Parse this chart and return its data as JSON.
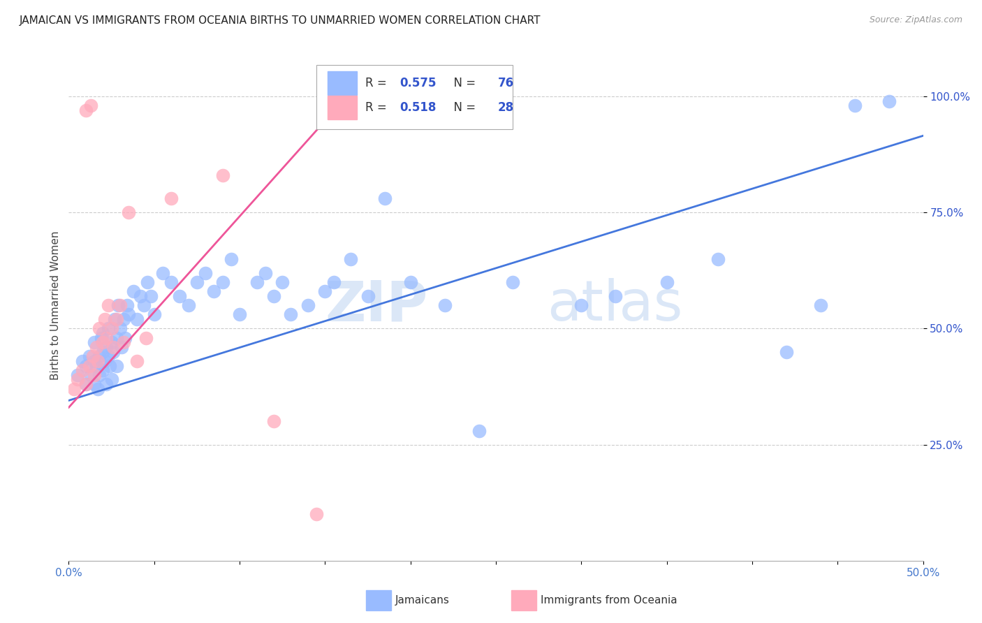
{
  "title": "JAMAICAN VS IMMIGRANTS FROM OCEANIA BIRTHS TO UNMARRIED WOMEN CORRELATION CHART",
  "source": "Source: ZipAtlas.com",
  "ylabel": "Births to Unmarried Women",
  "ytick_labels": [
    "25.0%",
    "50.0%",
    "75.0%",
    "100.0%"
  ],
  "ytick_vals": [
    0.25,
    0.5,
    0.75,
    1.0
  ],
  "xtick_labels": [
    "0.0%",
    "",
    "",
    "",
    "",
    "",
    "",
    "",
    "",
    "",
    "50.0%"
  ],
  "xlim": [
    0.0,
    0.5
  ],
  "ylim": [
    0.0,
    1.1
  ],
  "blue_scatter_color": "#99bbff",
  "pink_scatter_color": "#ffaabb",
  "blue_line_color": "#4477dd",
  "pink_line_color": "#ee5599",
  "legend_R_color": "#3355cc",
  "legend_R_blue": "0.575",
  "legend_N_blue": "76",
  "legend_R_pink": "0.518",
  "legend_N_pink": "28",
  "legend_label_blue": "Jamaicans",
  "legend_label_pink": "Immigrants from Oceania",
  "watermark_zip": "ZIP",
  "watermark_atlas": "atlas",
  "blue_scatter_x": [
    0.005,
    0.008,
    0.01,
    0.01,
    0.012,
    0.013,
    0.015,
    0.015,
    0.015,
    0.016,
    0.017,
    0.018,
    0.018,
    0.019,
    0.02,
    0.02,
    0.02,
    0.021,
    0.022,
    0.022,
    0.023,
    0.023,
    0.024,
    0.025,
    0.025,
    0.026,
    0.027,
    0.028,
    0.028,
    0.029,
    0.03,
    0.031,
    0.032,
    0.033,
    0.034,
    0.035,
    0.038,
    0.04,
    0.042,
    0.044,
    0.046,
    0.048,
    0.05,
    0.055,
    0.06,
    0.065,
    0.07,
    0.075,
    0.08,
    0.085,
    0.09,
    0.095,
    0.1,
    0.11,
    0.115,
    0.12,
    0.125,
    0.13,
    0.14,
    0.15,
    0.155,
    0.165,
    0.175,
    0.185,
    0.2,
    0.22,
    0.24,
    0.26,
    0.3,
    0.32,
    0.35,
    0.38,
    0.42,
    0.44,
    0.46,
    0.48
  ],
  "blue_scatter_y": [
    0.4,
    0.43,
    0.38,
    0.42,
    0.44,
    0.4,
    0.38,
    0.43,
    0.47,
    0.42,
    0.37,
    0.4,
    0.44,
    0.48,
    0.41,
    0.45,
    0.49,
    0.43,
    0.38,
    0.46,
    0.44,
    0.5,
    0.42,
    0.39,
    0.47,
    0.45,
    0.52,
    0.48,
    0.42,
    0.55,
    0.5,
    0.46,
    0.52,
    0.48,
    0.55,
    0.53,
    0.58,
    0.52,
    0.57,
    0.55,
    0.6,
    0.57,
    0.53,
    0.62,
    0.6,
    0.57,
    0.55,
    0.6,
    0.62,
    0.58,
    0.6,
    0.65,
    0.53,
    0.6,
    0.62,
    0.57,
    0.6,
    0.53,
    0.55,
    0.58,
    0.6,
    0.65,
    0.57,
    0.78,
    0.6,
    0.55,
    0.28,
    0.6,
    0.55,
    0.57,
    0.6,
    0.65,
    0.45,
    0.55,
    0.98,
    0.99
  ],
  "pink_scatter_x": [
    0.003,
    0.005,
    0.008,
    0.01,
    0.01,
    0.012,
    0.013,
    0.014,
    0.015,
    0.016,
    0.017,
    0.018,
    0.02,
    0.021,
    0.022,
    0.023,
    0.025,
    0.026,
    0.028,
    0.03,
    0.032,
    0.035,
    0.04,
    0.045,
    0.06,
    0.09,
    0.12,
    0.145
  ],
  "pink_scatter_y": [
    0.37,
    0.39,
    0.41,
    0.38,
    0.97,
    0.42,
    0.98,
    0.44,
    0.4,
    0.46,
    0.43,
    0.5,
    0.47,
    0.52,
    0.48,
    0.55,
    0.5,
    0.46,
    0.52,
    0.55,
    0.47,
    0.75,
    0.43,
    0.48,
    0.78,
    0.83,
    0.3,
    0.1
  ],
  "blue_line_x": [
    0.0,
    0.5
  ],
  "blue_line_y": [
    0.345,
    0.915
  ],
  "pink_line_x": [
    0.0,
    0.175
  ],
  "pink_line_y": [
    0.33,
    1.05
  ]
}
